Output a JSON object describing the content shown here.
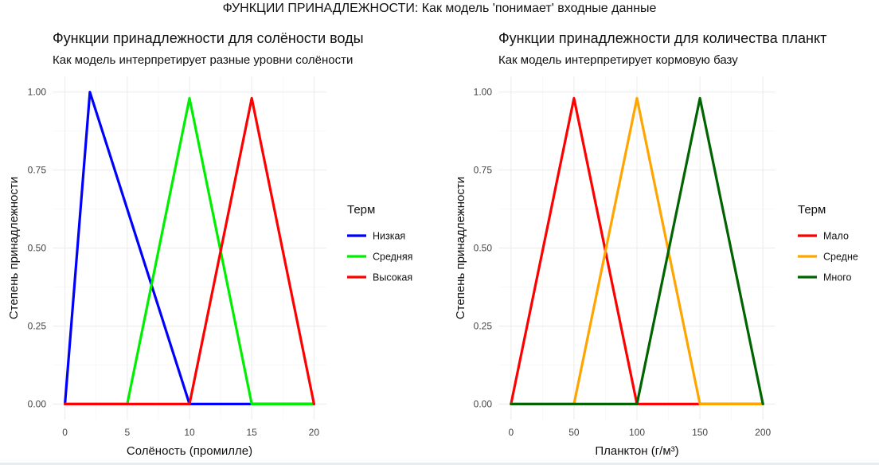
{
  "suptitle": "ФУНКЦИИ ПРИНАДЛЕЖНОСТИ: Как модель 'понимает' входные данные",
  "chart_data": [
    {
      "type": "line",
      "title": "Функции принадлежности для солёности воды",
      "subtitle": "Как модель интерпретирует разные уровни солёности",
      "xlabel": "Солёность (промилле)",
      "ylabel": "Степень принадлежности",
      "xlim": [
        0,
        20
      ],
      "ylim": [
        0,
        1
      ],
      "xticks": [
        0,
        5,
        10,
        15,
        20
      ],
      "yticks": [
        "0.00",
        "0.25",
        "0.50",
        "0.75",
        "1.00"
      ],
      "grid": true,
      "legend_title": "Терм",
      "legend_position": "right",
      "series": [
        {
          "name": "Низкая",
          "color": "#0000ff",
          "x": [
            0,
            2,
            10,
            20
          ],
          "y": [
            0,
            1,
            0,
            0
          ]
        },
        {
          "name": "Средняя",
          "color": "#00ee00",
          "x": [
            0,
            5,
            10,
            15,
            20
          ],
          "y": [
            0,
            0,
            0.98,
            0,
            0
          ]
        },
        {
          "name": "Высокая",
          "color": "#ff0000",
          "x": [
            0,
            10,
            15,
            20
          ],
          "y": [
            0,
            0,
            0.98,
            0
          ]
        }
      ]
    },
    {
      "type": "line",
      "title": "Функции принадлежности для количества планкт",
      "subtitle": "Как модель интерпретирует кормовую базу",
      "xlabel": "Планктон (г/м³)",
      "ylabel": "Степень принадлежности",
      "xlim": [
        0,
        200
      ],
      "ylim": [
        0,
        1
      ],
      "xticks": [
        0,
        50,
        100,
        150,
        200
      ],
      "yticks": [
        "0.00",
        "0.25",
        "0.50",
        "0.75",
        "1.00"
      ],
      "grid": true,
      "legend_title": "Терм",
      "legend_position": "right",
      "series": [
        {
          "name": "Мало",
          "color": "#ff0000",
          "x": [
            0,
            50,
            100,
            200
          ],
          "y": [
            0,
            0.98,
            0,
            0
          ]
        },
        {
          "name": "Средне",
          "color": "#ffa500",
          "x": [
            0,
            50,
            100,
            150,
            200
          ],
          "y": [
            0,
            0,
            0.98,
            0,
            0
          ]
        },
        {
          "name": "Много",
          "color": "#006400",
          "x": [
            0,
            100,
            150,
            200
          ],
          "y": [
            0,
            0,
            0.98,
            0
          ]
        }
      ]
    }
  ]
}
